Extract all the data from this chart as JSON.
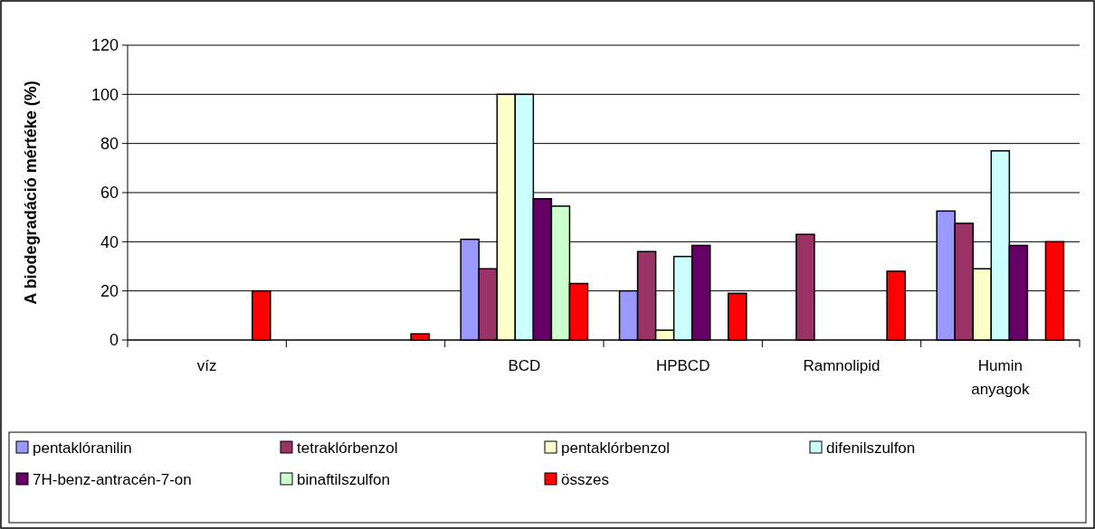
{
  "chart_data": {
    "type": "bar",
    "ylabel": "A biodegradáció mértéke (%)",
    "categories": [
      "víz",
      null,
      "BCD",
      "HPBCD",
      "Ramnolipid",
      "Humin anyagok"
    ],
    "ylim": [
      0,
      120
    ],
    "yticks": [
      0,
      20,
      40,
      60,
      80,
      100,
      120
    ],
    "grid": "y",
    "legend": "bottom",
    "series": [
      {
        "name": "pentaklóranilin",
        "color": "#9999ff",
        "values": [
          null,
          null,
          41,
          20,
          null,
          52.5
        ]
      },
      {
        "name": "tetraklórbenzol",
        "color": "#993366",
        "values": [
          null,
          null,
          29,
          36,
          43,
          47.5
        ]
      },
      {
        "name": "pentaklórbenzol",
        "color": "#ffffcc",
        "values": [
          null,
          null,
          100,
          4,
          null,
          29
        ]
      },
      {
        "name": "difenilszulfon",
        "color": "#ccffff",
        "values": [
          null,
          null,
          100,
          34,
          null,
          77
        ]
      },
      {
        "name": "7H-benz-antracén-7-on",
        "color": "#660066",
        "values": [
          null,
          null,
          57.5,
          38.5,
          null,
          38.5
        ]
      },
      {
        "name": "binaftilszulfon",
        "color": "#ccffcc",
        "values": [
          null,
          null,
          54.5,
          null,
          null,
          null
        ]
      },
      {
        "name": "összes",
        "color": "#ff0000",
        "values": [
          20,
          2.5,
          23,
          19,
          28,
          40
        ]
      }
    ]
  }
}
